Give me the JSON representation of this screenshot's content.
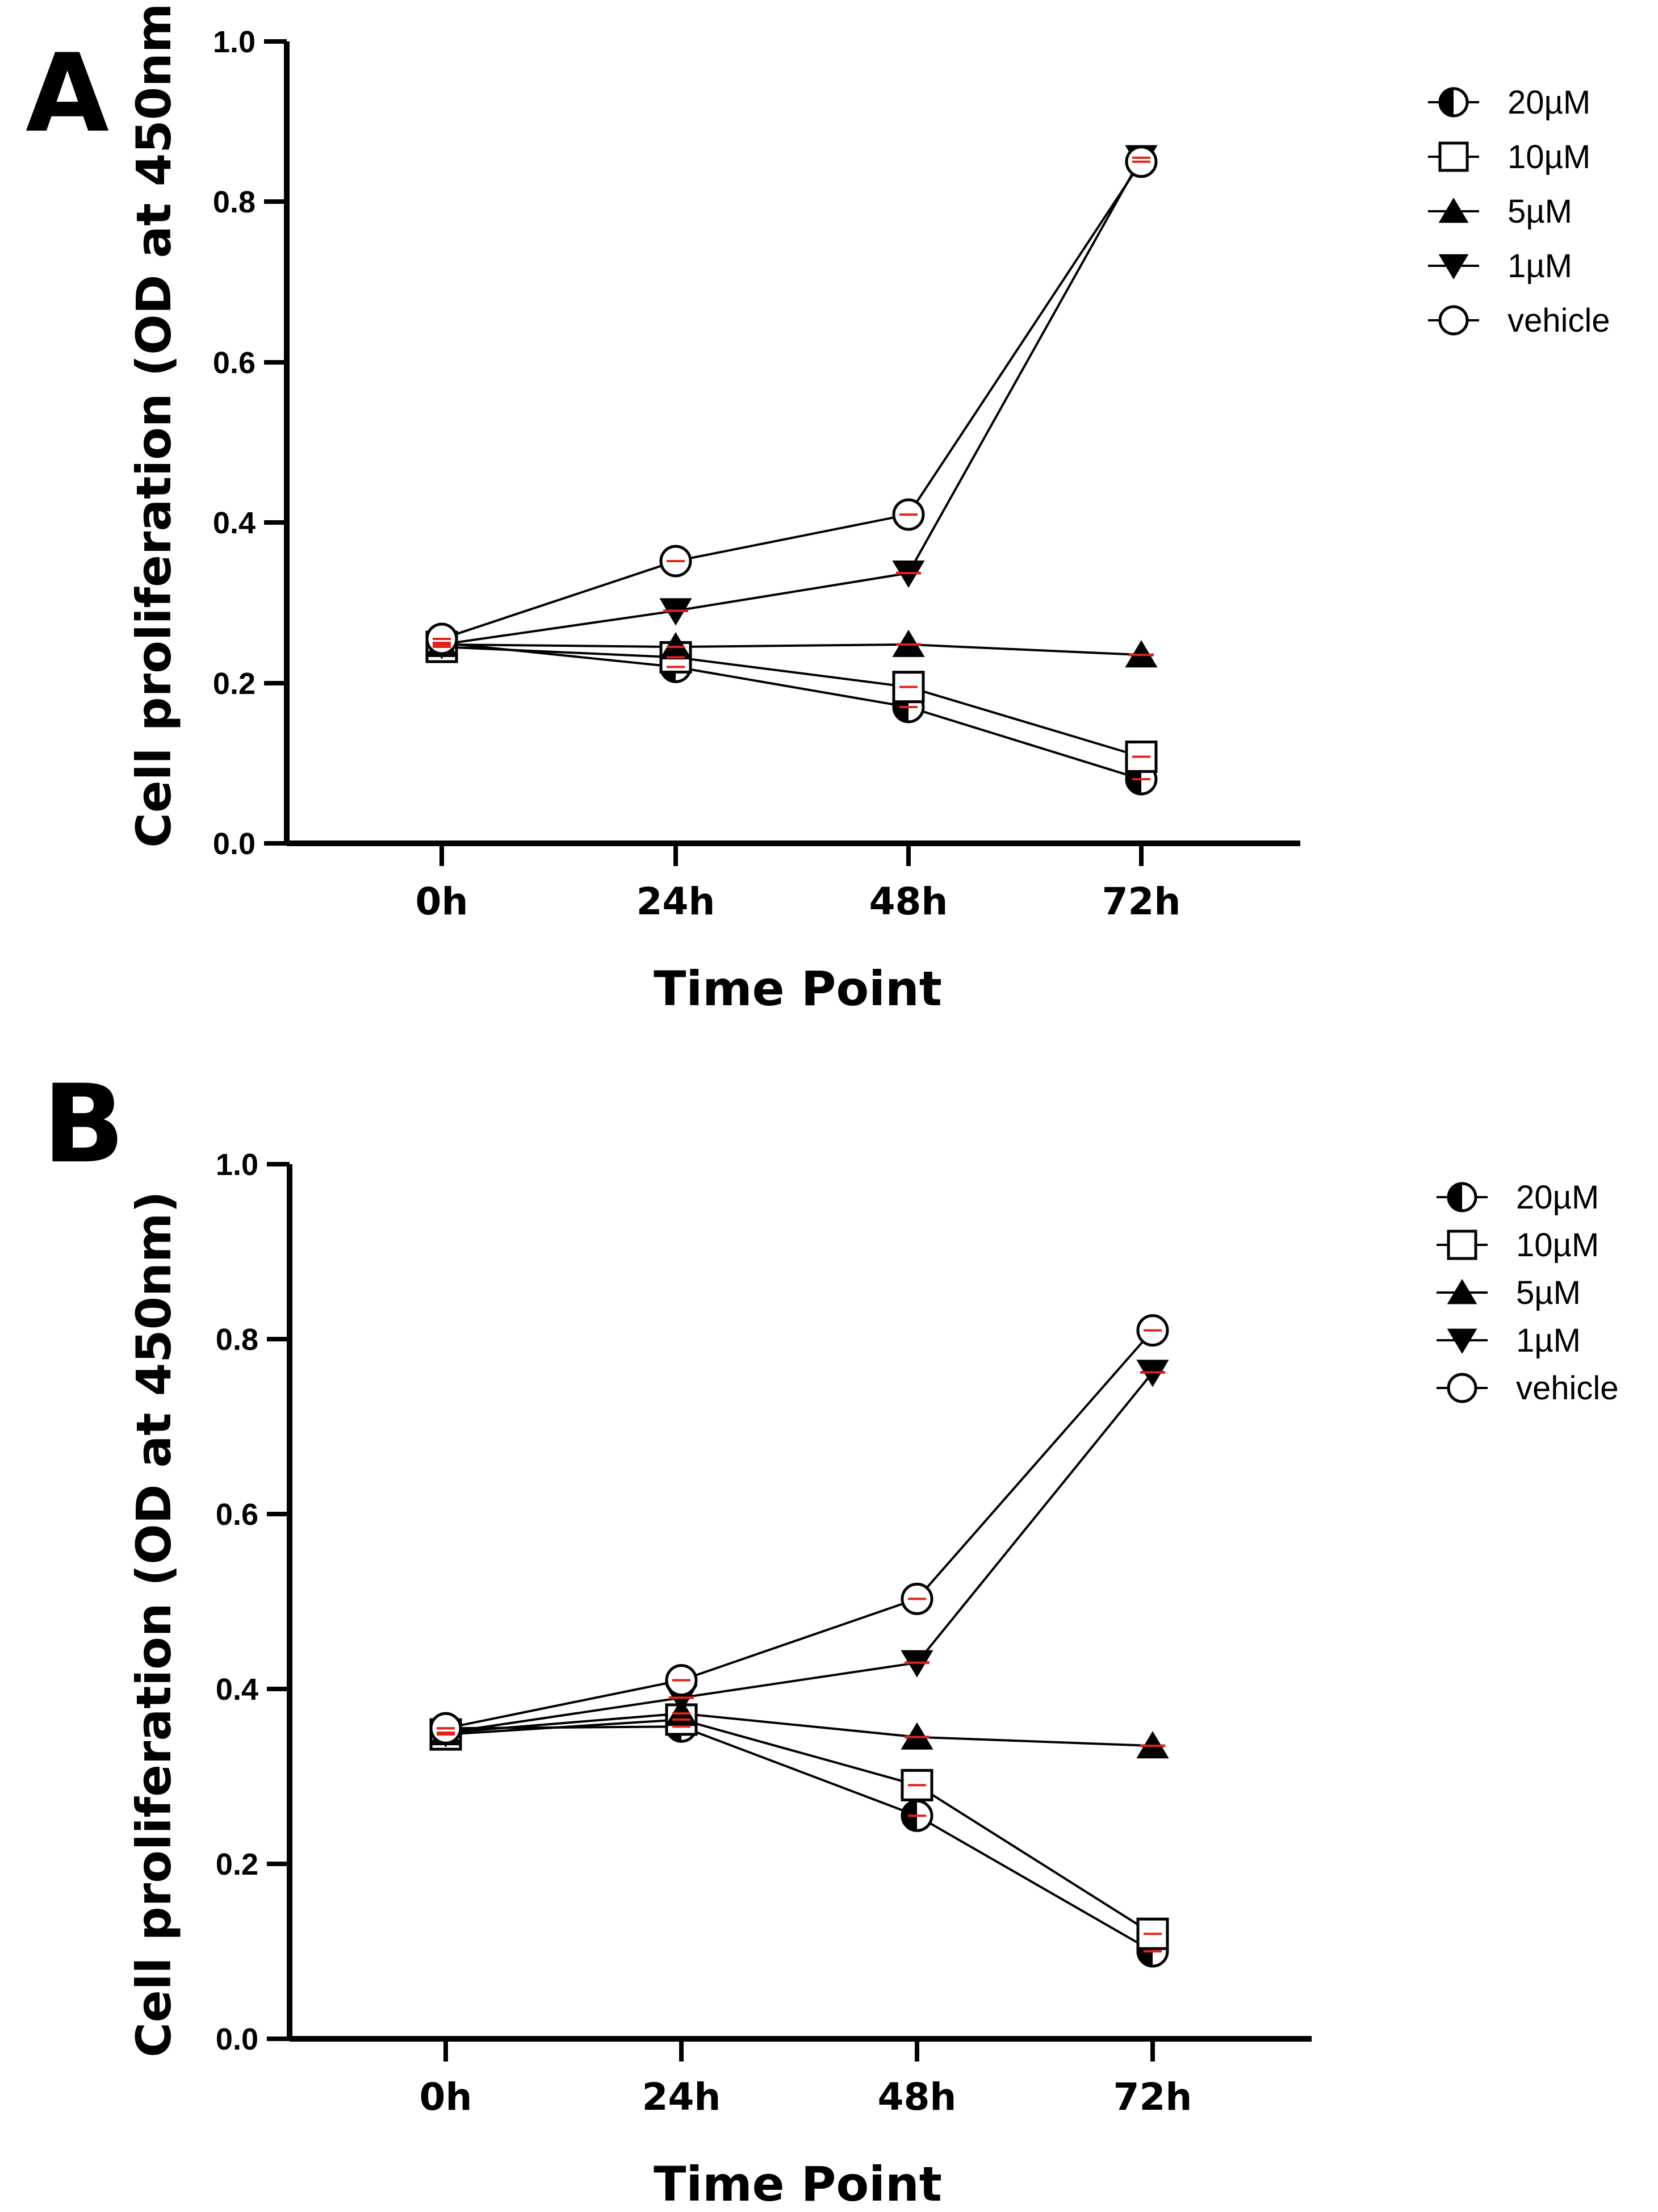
{
  "figure": {
    "panels": [
      "A",
      "B"
    ]
  },
  "chart_data": [
    {
      "panel": "A",
      "type": "line",
      "title": "",
      "xlabel": "Time Point",
      "ylabel": "Cell proliferation (OD at 450nm)",
      "categories": [
        "0h",
        "24h",
        "48h",
        "72h"
      ],
      "ylim": [
        0.0,
        1.0
      ],
      "yticks": [
        "0.0",
        "0.2",
        "0.4",
        "0.6",
        "0.8",
        "1.0"
      ],
      "legend_position": "top-right",
      "series": [
        {
          "name": "20µM",
          "marker": "half-circle",
          "values": [
            0.25,
            0.22,
            0.17,
            0.08
          ]
        },
        {
          "name": "10µM",
          "marker": "open-square",
          "values": [
            0.245,
            0.232,
            0.195,
            0.108
          ]
        },
        {
          "name": "5µM",
          "marker": "filled-triangle-up",
          "values": [
            0.248,
            0.245,
            0.248,
            0.235
          ]
        },
        {
          "name": "1µM",
          "marker": "filled-triangle-down",
          "values": [
            0.248,
            0.29,
            0.337,
            0.855
          ]
        },
        {
          "name": "vehicle",
          "marker": "open-circle",
          "values": [
            0.255,
            0.352,
            0.41,
            0.85
          ]
        }
      ]
    },
    {
      "panel": "B",
      "type": "line",
      "title": "",
      "xlabel": "Time Point",
      "ylabel": "Cell proliferation (OD at 450nm)",
      "categories": [
        "0h",
        "24h",
        "48h",
        "72h"
      ],
      "ylim": [
        0.0,
        1.0
      ],
      "yticks": [
        "0.0",
        "0.2",
        "0.4",
        "0.6",
        "0.8",
        "1.0"
      ],
      "legend_position": "top-right",
      "series": [
        {
          "name": "20µM",
          "marker": "half-circle",
          "values": [
            0.355,
            0.357,
            0.255,
            0.1
          ]
        },
        {
          "name": "10µM",
          "marker": "open-square",
          "values": [
            0.348,
            0.365,
            0.29,
            0.12
          ]
        },
        {
          "name": "5µM",
          "marker": "filled-triangle-up",
          "values": [
            0.35,
            0.372,
            0.345,
            0.335
          ]
        },
        {
          "name": "1µM",
          "marker": "filled-triangle-down",
          "values": [
            0.35,
            0.39,
            0.43,
            0.762
          ]
        },
        {
          "name": "vehicle",
          "marker": "open-circle",
          "values": [
            0.355,
            0.41,
            0.503,
            0.81
          ]
        }
      ]
    }
  ]
}
